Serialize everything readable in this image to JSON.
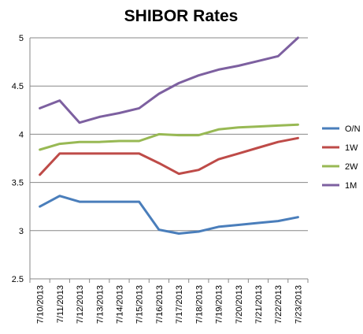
{
  "chart_data": {
    "type": "line",
    "title": "SHIBOR Rates",
    "xlabel": "",
    "ylabel": "",
    "ylim": [
      2.5,
      5
    ],
    "yticks": [
      "2.5",
      "3",
      "3.5",
      "4",
      "4.5",
      "5"
    ],
    "grid": true,
    "legend_position": "right",
    "categories": [
      "7/10/2013",
      "7/11/2013",
      "7/12/2013",
      "7/13/2013",
      "7/14/2013",
      "7/15/2013",
      "7/16/2013",
      "7/17/2013",
      "7/18/2013",
      "7/19/2013",
      "7/20/2013",
      "7/21/2013",
      "7/22/2013",
      "7/23/2013"
    ],
    "series": [
      {
        "name": "O/N",
        "color": "#4a7ebb",
        "values": [
          3.25,
          3.36,
          3.3,
          3.3,
          3.3,
          3.3,
          3.01,
          2.97,
          2.99,
          3.04,
          3.06,
          3.08,
          3.1,
          3.14
        ]
      },
      {
        "name": "1W",
        "color": "#be4b48",
        "values": [
          3.58,
          3.8,
          3.8,
          3.8,
          3.8,
          3.8,
          3.7,
          3.59,
          3.63,
          3.74,
          3.8,
          3.86,
          3.92,
          3.96
        ]
      },
      {
        "name": "2W",
        "color": "#98b954",
        "values": [
          3.84,
          3.9,
          3.92,
          3.92,
          3.93,
          3.93,
          4.0,
          3.99,
          3.99,
          4.05,
          4.07,
          4.08,
          4.09,
          4.1
        ]
      },
      {
        "name": "1M",
        "color": "#7d60a0",
        "values": [
          4.27,
          4.35,
          4.12,
          4.18,
          4.22,
          4.27,
          4.42,
          4.53,
          4.61,
          4.67,
          4.71,
          4.76,
          4.81,
          5.0
        ]
      }
    ]
  }
}
